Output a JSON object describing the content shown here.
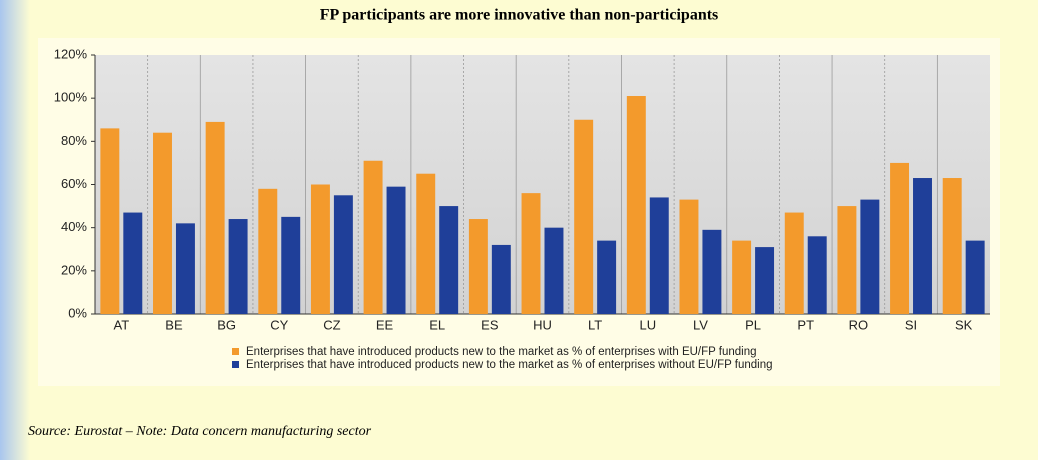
{
  "chart_data": {
    "type": "bar",
    "title": "FP participants are more innovative than non-participants",
    "categories": [
      "AT",
      "BE",
      "BG",
      "CY",
      "CZ",
      "EE",
      "EL",
      "ES",
      "HU",
      "LT",
      "LU",
      "LV",
      "PL",
      "PT",
      "RO",
      "SI",
      "SK"
    ],
    "series": [
      {
        "name": "Enterprises that have introduced products new to the market as % of enterprises with EU/FP funding",
        "color": "#f39a2c",
        "values": [
          86,
          84,
          89,
          58,
          60,
          71,
          65,
          44,
          56,
          90,
          101,
          53,
          34,
          47,
          50,
          70,
          63
        ]
      },
      {
        "name": "Enterprises that have introduced products new to the market as % of enterprises without EU/FP funding",
        "color": "#1f3f99",
        "values": [
          47,
          42,
          44,
          45,
          55,
          59,
          50,
          32,
          40,
          34,
          54,
          39,
          31,
          36,
          53,
          63,
          34
        ]
      }
    ],
    "ylim": [
      0,
      120
    ],
    "yticks": [
      {
        "value": 0,
        "label": "0%"
      },
      {
        "value": 20,
        "label": "20%"
      },
      {
        "value": 40,
        "label": "40%"
      },
      {
        "value": 60,
        "label": "60%"
      },
      {
        "value": 80,
        "label": "80%"
      },
      {
        "value": 100,
        "label": "100%"
      },
      {
        "value": 120,
        "label": "120%"
      }
    ],
    "grid": false,
    "note": "Source: Eurostat – Note: Data concern manufacturing sector"
  }
}
